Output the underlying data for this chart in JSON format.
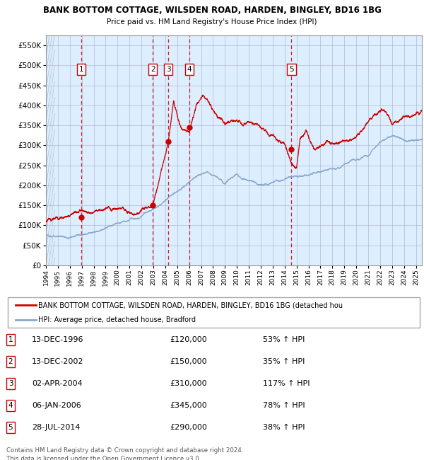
{
  "title_line1": "BANK BOTTOM COTTAGE, WILSDEN ROAD, HARDEN, BINGLEY, BD16 1BG",
  "title_line2": "Price paid vs. HM Land Registry's House Price Index (HPI)",
  "ylim": [
    0,
    575000
  ],
  "yticks": [
    0,
    50000,
    100000,
    150000,
    200000,
    250000,
    300000,
    350000,
    400000,
    450000,
    500000,
    550000
  ],
  "ytick_labels": [
    "£0",
    "£50K",
    "£100K",
    "£150K",
    "£200K",
    "£250K",
    "£300K",
    "£350K",
    "£400K",
    "£450K",
    "£500K",
    "£550K"
  ],
  "transactions": [
    {
      "num": 1,
      "date": "1996-12-13",
      "price": 120000,
      "label": "13-DEC-1996",
      "pct": "53%",
      "x_year": 1996.95
    },
    {
      "num": 2,
      "date": "2002-12-13",
      "price": 150000,
      "label": "13-DEC-2002",
      "pct": "35%",
      "x_year": 2002.95
    },
    {
      "num": 3,
      "date": "2004-04-02",
      "price": 310000,
      "label": "02-APR-2004",
      "pct": "117%",
      "x_year": 2004.25
    },
    {
      "num": 4,
      "date": "2006-01-06",
      "price": 345000,
      "label": "06-JAN-2006",
      "pct": "78%",
      "x_year": 2006.02
    },
    {
      "num": 5,
      "date": "2014-07-28",
      "price": 290000,
      "label": "28-JUL-2014",
      "pct": "38%",
      "x_year": 2014.57
    }
  ],
  "legend_label_red": "BANK BOTTOM COTTAGE, WILSDEN ROAD, HARDEN, BINGLEY, BD16 1BG (detached hou",
  "legend_label_blue": "HPI: Average price, detached house, Bradford",
  "footer_line1": "Contains HM Land Registry data © Crown copyright and database right 2024.",
  "footer_line2": "This data is licensed under the Open Government Licence v3.0.",
  "bg_color": "#ddeeff",
  "red_line_color": "#cc0000",
  "blue_line_color": "#88aacc",
  "box_edge_color": "#cc0000",
  "grid_color": "#aaaacc",
  "start_year": 1994,
  "end_year": 2025,
  "xlim_left": 1994.0,
  "xlim_right": 2025.5
}
